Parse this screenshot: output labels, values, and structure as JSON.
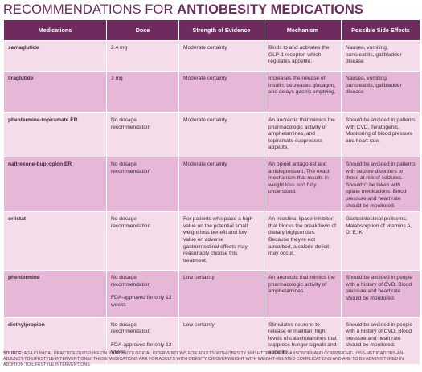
{
  "title": {
    "prefix": "RECOMMENDATIONS FOR ",
    "emphasis": "ANTIOBESITY MEDICATIONS"
  },
  "table": {
    "header": [
      "Medications",
      "Dose",
      "Strength of Evidence",
      "Mechanism",
      "Possible Side Effects"
    ],
    "rows": [
      [
        "semaglutide",
        "2.4 mg",
        "Moderate certainty",
        "Binds to and activates the GLP-1 receptor, which regulates appetite.",
        "Nausea, vomiting, pancreatitis, gallbladder disease"
      ],
      [
        "liraglutide",
        "3 mg",
        "Moderate certainty",
        "Increases the release of insulin, decreases glucagon, and delays gastric emptying.",
        "Nausea, vomiting, pancreatitis, gallbladder disease"
      ],
      [
        "phentermine-topiramate ER",
        "No dosage recommendation",
        "Moderate certainty",
        "An anorectic that mimics the pharmacologic activity of amphetamines, and topiramate suppresses appetite.",
        "Should be avoided in patients with CVD. Teratogenic. Monitoring of blood pressure and heart rate."
      ],
      [
        "naltrexone-bupropion ER",
        "No dosage recommendation",
        "Moderate certainty",
        "An opioid antagonist and antidepressant. The exact mechanism that results in weight loss isn't fully understood.",
        "Should be avoided in patients with seizure disorders or those at risk of seizures. Shouldn't be taken with opiate medications. Blood pressure and heart rate should be monitored."
      ],
      [
        "orlistat",
        "No dosage recommendation",
        "For patients who place a high value on the potential small weight loss benefit and low value on adverse gastrointestinal effects may reasonably choose this treatment.",
        "An intestinal lipase inhibitor that blocks the breakdown of dietary triglycerides. Because they're not absorbed, a calorie deficit may occur.",
        "Gastrointestinal problems. Malabsorption of vitamins A, D, E, K"
      ],
      [
        "phentermine",
        [
          "No dosage recommendation",
          "FDA-approved for only 12 weeks"
        ],
        "Low certainty",
        "An anorectic that mimics the pharmacologic activity of amphetamines.",
        "Should be avoided in people with a history of CVD. Blood pressure and heart rate should be monitored."
      ],
      [
        "diethylpropion",
        [
          "No dosage recommendation",
          "FDA-approved for only 12 weeks"
        ],
        "Low certainty",
        "Stimulates neurons to release or maintain high levels of catecholamines that suppress hunger signals and appetite.",
        "Should be avoided in people with a history of CVD. Blood pressure and heart rate should be monitored."
      ]
    ]
  },
  "source": {
    "label": "SOURCE:",
    "text": " AGA CLINICAL PRACTICE GUIDELINE ON PHARMACOLOGICAL INTERVENTIONS FOR ADULTS WITH OBESITY AND HTTPS://DIETITIANSONDEMAND.COM/WEIGHT-LOSS-MEDICATIONS-AN-ADJUNCT-TO-LIFESTYLE-INTERVENTIONS/. THESE MEDICATIONS ARE FOR ADULTS WITH OBESITY OR OVERWEIGHT WITH WEIGHT-RELATED COMPLICATIONS AND ARE TO BE ADMINISTERED IN ADDITION TO LIFESTYLE INTERVENTIONS."
  }
}
